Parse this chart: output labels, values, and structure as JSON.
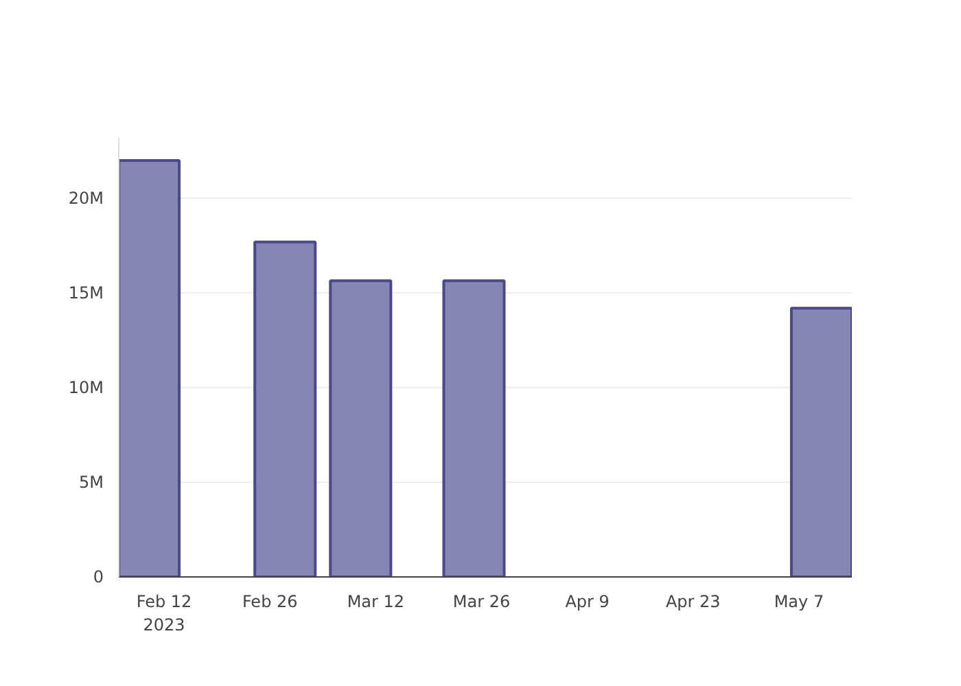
{
  "chart_data": {
    "type": "bar",
    "x": [
      "2023-02-10",
      "2023-02-28",
      "2023-03-10",
      "2023-03-25",
      "2023-05-10"
    ],
    "values": [
      22.0,
      17.7,
      15.65,
      15.65,
      14.2
    ],
    "color": "#7f7fb0",
    "xlim": [
      "2023-02-06",
      "2023-05-14"
    ],
    "xticks": [
      {
        "value": "2023-02-12",
        "label": "Feb 12\n2023"
      },
      {
        "value": "2023-02-26",
        "label": "Feb 26"
      },
      {
        "value": "2023-03-12",
        "label": "Mar 12"
      },
      {
        "value": "2023-03-26",
        "label": "Mar 26"
      },
      {
        "value": "2023-04-09",
        "label": "Apr 9"
      },
      {
        "value": "2023-04-23",
        "label": "Apr 23"
      },
      {
        "value": "2023-05-07",
        "label": "May 7"
      }
    ],
    "ylim": [
      0,
      23.2
    ],
    "yticks": [
      {
        "value": 0,
        "label": "0"
      },
      {
        "value": 5,
        "label": "5M"
      },
      {
        "value": 10,
        "label": "10M"
      },
      {
        "value": 15,
        "label": "15M"
      },
      {
        "value": 20,
        "label": "20M"
      }
    ],
    "grid": "y"
  }
}
